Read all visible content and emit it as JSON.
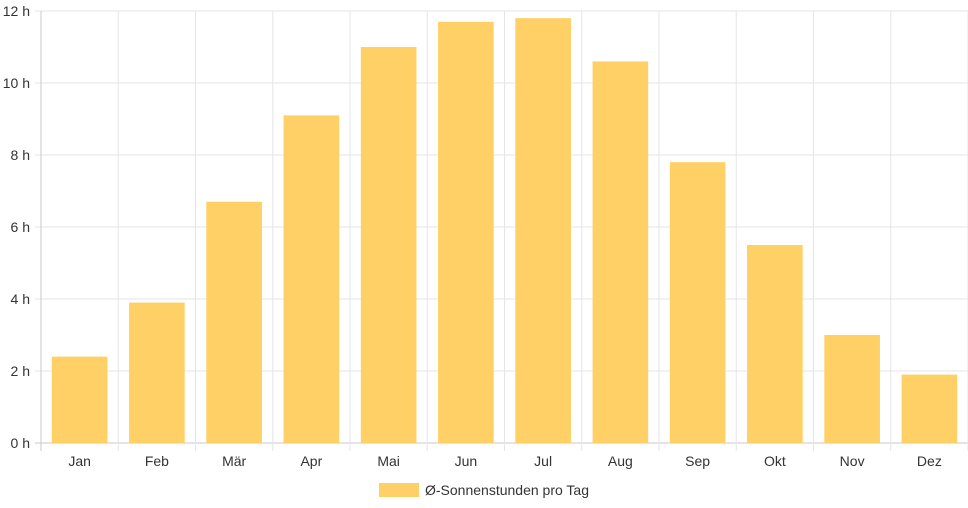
{
  "chart_data": {
    "type": "bar",
    "categories": [
      "Jan",
      "Feb",
      "Mär",
      "Apr",
      "Mai",
      "Jun",
      "Jul",
      "Aug",
      "Sep",
      "Okt",
      "Nov",
      "Dez"
    ],
    "series": [
      {
        "name": "Ø-Sonnenstunden pro Tag",
        "values": [
          2.4,
          3.9,
          6.7,
          9.1,
          11.0,
          11.7,
          11.8,
          10.6,
          7.8,
          5.5,
          3.0,
          1.9
        ],
        "color": "#fed065"
      }
    ],
    "ylim": [
      0,
      12
    ],
    "yticks": [
      "0 h",
      "2 h",
      "4 h",
      "6 h",
      "8 h",
      "10 h",
      "12 h"
    ],
    "grid": true,
    "legend_position": "bottom"
  }
}
